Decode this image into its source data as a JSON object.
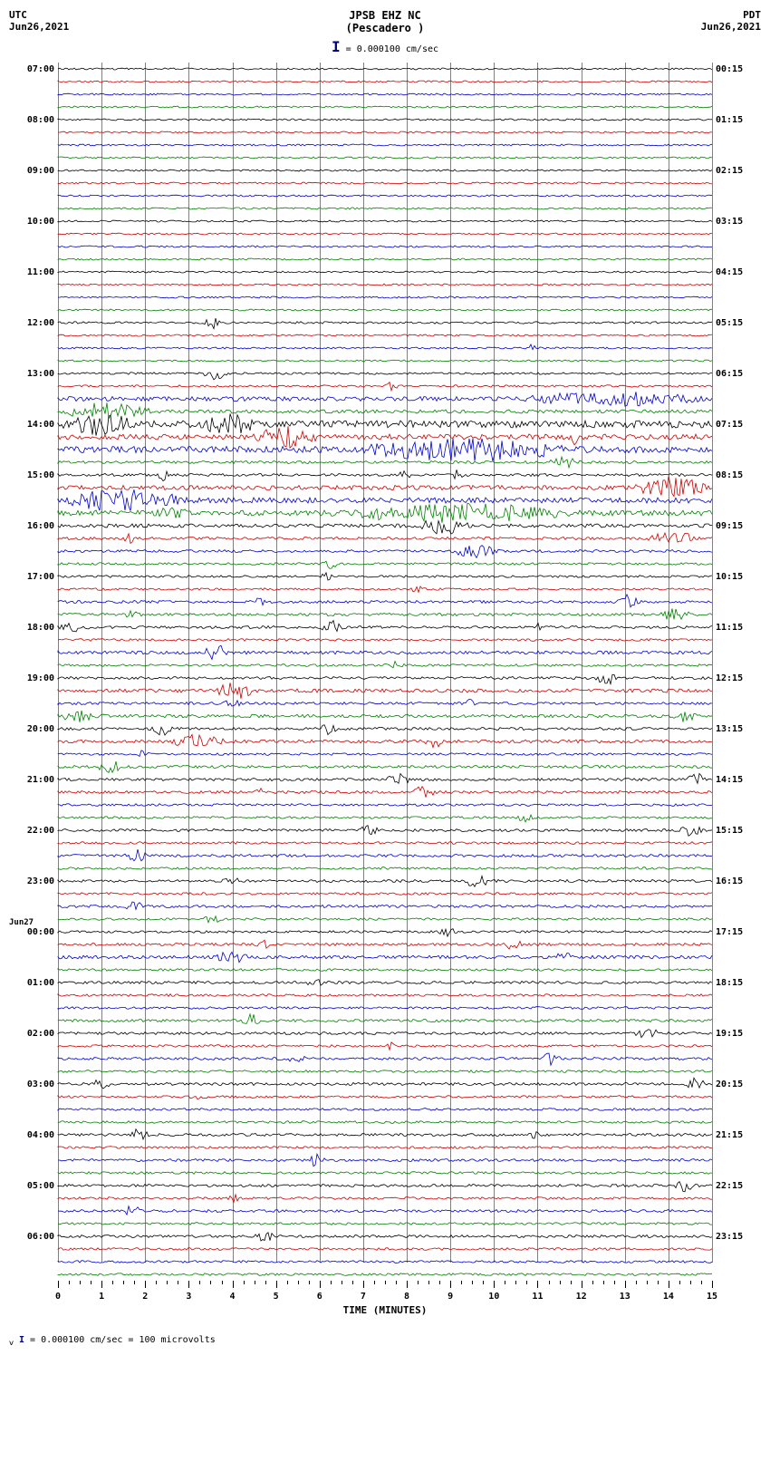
{
  "header": {
    "left_tz": "UTC",
    "left_date": "Jun26,2021",
    "station": "JPSB EHZ NC",
    "location": "(Pescadero )",
    "right_tz": "PDT",
    "right_date": "Jun26,2021",
    "scale_text": "= 0.000100 cm/sec"
  },
  "footer": {
    "text": "= 0.000100 cm/sec =    100 microvolts"
  },
  "x_axis": {
    "label": "TIME (MINUTES)",
    "min": 0,
    "max": 15,
    "major_ticks": [
      0,
      1,
      2,
      3,
      4,
      5,
      6,
      7,
      8,
      9,
      10,
      11,
      12,
      13,
      14,
      15
    ],
    "minor_per_major": 4
  },
  "colors": {
    "cycle": [
      "#000000",
      "#cc0000",
      "#0000cc",
      "#008000"
    ],
    "grid": "#808080",
    "background": "#ffffff"
  },
  "date_markers": [
    {
      "row_index": 68,
      "text": "Jun27"
    }
  ],
  "rows": [
    {
      "left": "07:00",
      "right": "00:15",
      "color": 0,
      "amp": 1.0,
      "events": []
    },
    {
      "left": "",
      "right": "",
      "color": 1,
      "amp": 1.0,
      "events": []
    },
    {
      "left": "",
      "right": "",
      "color": 2,
      "amp": 1.0,
      "events": []
    },
    {
      "left": "",
      "right": "",
      "color": 3,
      "amp": 1.0,
      "events": []
    },
    {
      "left": "08:00",
      "right": "01:15",
      "color": 0,
      "amp": 1.0,
      "events": []
    },
    {
      "left": "",
      "right": "",
      "color": 1,
      "amp": 1.0,
      "events": []
    },
    {
      "left": "",
      "right": "",
      "color": 2,
      "amp": 1.0,
      "events": []
    },
    {
      "left": "",
      "right": "",
      "color": 3,
      "amp": 1.0,
      "events": []
    },
    {
      "left": "09:00",
      "right": "02:15",
      "color": 0,
      "amp": 1.0,
      "events": []
    },
    {
      "left": "",
      "right": "",
      "color": 1,
      "amp": 1.0,
      "events": []
    },
    {
      "left": "",
      "right": "",
      "color": 2,
      "amp": 1.0,
      "events": []
    },
    {
      "left": "",
      "right": "",
      "color": 3,
      "amp": 1.0,
      "events": []
    },
    {
      "left": "10:00",
      "right": "03:15",
      "color": 0,
      "amp": 1.0,
      "events": []
    },
    {
      "left": "",
      "right": "",
      "color": 1,
      "amp": 1.0,
      "events": []
    },
    {
      "left": "",
      "right": "",
      "color": 2,
      "amp": 1.0,
      "events": []
    },
    {
      "left": "",
      "right": "",
      "color": 3,
      "amp": 1.0,
      "events": []
    },
    {
      "left": "11:00",
      "right": "04:15",
      "color": 0,
      "amp": 1.0,
      "events": []
    },
    {
      "left": "",
      "right": "",
      "color": 1,
      "amp": 1.0,
      "events": []
    },
    {
      "left": "",
      "right": "",
      "color": 2,
      "amp": 1.0,
      "events": []
    },
    {
      "left": "",
      "right": "",
      "color": 3,
      "amp": 1.0,
      "events": []
    },
    {
      "left": "12:00",
      "right": "05:15",
      "color": 0,
      "amp": 1.2,
      "events": [
        {
          "pos": 0.22,
          "w": 0.03,
          "h": 3
        }
      ]
    },
    {
      "left": "",
      "right": "",
      "color": 1,
      "amp": 1.0,
      "events": []
    },
    {
      "left": "",
      "right": "",
      "color": 2,
      "amp": 1.0,
      "events": [
        {
          "pos": 0.72,
          "w": 0.01,
          "h": 2
        }
      ]
    },
    {
      "left": "",
      "right": "",
      "color": 3,
      "amp": 1.0,
      "events": []
    },
    {
      "left": "13:00",
      "right": "06:15",
      "color": 0,
      "amp": 1.2,
      "events": [
        {
          "pos": 0.22,
          "w": 0.04,
          "h": 3
        }
      ]
    },
    {
      "left": "",
      "right": "",
      "color": 1,
      "amp": 1.2,
      "events": [
        {
          "pos": 0.5,
          "w": 0.02,
          "h": 2
        }
      ]
    },
    {
      "left": "",
      "right": "",
      "color": 2,
      "amp": 2.5,
      "events": [
        {
          "pos": 0.7,
          "w": 0.3,
          "h": 3
        }
      ]
    },
    {
      "left": "",
      "right": "",
      "color": 3,
      "amp": 2.0,
      "events": [
        {
          "pos": 0.0,
          "w": 0.15,
          "h": 4
        }
      ]
    },
    {
      "left": "14:00",
      "right": "07:15",
      "color": 0,
      "amp": 4.0,
      "events": [
        {
          "pos": 0.0,
          "w": 0.12,
          "h": 5
        },
        {
          "pos": 0.22,
          "w": 0.08,
          "h": 6
        }
      ]
    },
    {
      "left": "",
      "right": "",
      "color": 1,
      "amp": 3.0,
      "events": [
        {
          "pos": 0.3,
          "w": 0.1,
          "h": 5
        },
        {
          "pos": 0.78,
          "w": 0.02,
          "h": 3
        }
      ]
    },
    {
      "left": "",
      "right": "",
      "color": 2,
      "amp": 3.5,
      "events": [
        {
          "pos": 0.45,
          "w": 0.35,
          "h": 5
        }
      ]
    },
    {
      "left": "",
      "right": "",
      "color": 3,
      "amp": 1.5,
      "events": [
        {
          "pos": 0.75,
          "w": 0.05,
          "h": 3
        }
      ]
    },
    {
      "left": "15:00",
      "right": "08:15",
      "color": 0,
      "amp": 1.5,
      "events": [
        {
          "pos": 0.15,
          "w": 0.02,
          "h": 3
        },
        {
          "pos": 0.52,
          "w": 0.02,
          "h": 2
        },
        {
          "pos": 0.6,
          "w": 0.02,
          "h": 3
        }
      ]
    },
    {
      "left": "",
      "right": "",
      "color": 1,
      "amp": 2.5,
      "events": [
        {
          "pos": 0.88,
          "w": 0.12,
          "h": 5
        }
      ]
    },
    {
      "left": "",
      "right": "",
      "color": 2,
      "amp": 3.0,
      "events": [
        {
          "pos": 0.0,
          "w": 0.2,
          "h": 5
        }
      ]
    },
    {
      "left": "",
      "right": "",
      "color": 3,
      "amp": 3.0,
      "events": [
        {
          "pos": 0.15,
          "w": 0.05,
          "h": 3
        },
        {
          "pos": 0.4,
          "w": 0.4,
          "h": 4
        }
      ]
    },
    {
      "left": "16:00",
      "right": "09:15",
      "color": 0,
      "amp": 2.0,
      "events": [
        {
          "pos": 0.55,
          "w": 0.08,
          "h": 4
        }
      ]
    },
    {
      "left": "",
      "right": "",
      "color": 1,
      "amp": 1.5,
      "events": [
        {
          "pos": 0.1,
          "w": 0.02,
          "h": 2
        },
        {
          "pos": 0.9,
          "w": 0.08,
          "h": 4
        }
      ]
    },
    {
      "left": "",
      "right": "",
      "color": 2,
      "amp": 1.5,
      "events": [
        {
          "pos": 0.6,
          "w": 0.08,
          "h": 3
        }
      ]
    },
    {
      "left": "",
      "right": "",
      "color": 3,
      "amp": 1.3,
      "events": [
        {
          "pos": 0.4,
          "w": 0.03,
          "h": 2
        }
      ]
    },
    {
      "left": "17:00",
      "right": "10:15",
      "color": 0,
      "amp": 1.2,
      "events": [
        {
          "pos": 0.4,
          "w": 0.02,
          "h": 2
        }
      ]
    },
    {
      "left": "",
      "right": "",
      "color": 1,
      "amp": 1.2,
      "events": [
        {
          "pos": 0.54,
          "w": 0.02,
          "h": 2
        }
      ]
    },
    {
      "left": "",
      "right": "",
      "color": 2,
      "amp": 1.5,
      "events": [
        {
          "pos": 0.3,
          "w": 0.02,
          "h": 2
        },
        {
          "pos": 0.85,
          "w": 0.04,
          "h": 4
        }
      ]
    },
    {
      "left": "",
      "right": "",
      "color": 3,
      "amp": 1.5,
      "events": [
        {
          "pos": 0.1,
          "w": 0.03,
          "h": 3
        },
        {
          "pos": 0.92,
          "w": 0.05,
          "h": 3
        }
      ]
    },
    {
      "left": "18:00",
      "right": "11:15",
      "color": 0,
      "amp": 1.5,
      "events": [
        {
          "pos": 0.0,
          "w": 0.05,
          "h": 2
        },
        {
          "pos": 0.4,
          "w": 0.04,
          "h": 3
        },
        {
          "pos": 0.72,
          "w": 0.02,
          "h": 2
        }
      ]
    },
    {
      "left": "",
      "right": "",
      "color": 1,
      "amp": 1.3,
      "events": []
    },
    {
      "left": "",
      "right": "",
      "color": 2,
      "amp": 1.8,
      "events": [
        {
          "pos": 0.22,
          "w": 0.04,
          "h": 4
        }
      ]
    },
    {
      "left": "",
      "right": "",
      "color": 3,
      "amp": 1.3,
      "events": [
        {
          "pos": 0.5,
          "w": 0.03,
          "h": 2
        }
      ]
    },
    {
      "left": "19:00",
      "right": "12:15",
      "color": 0,
      "amp": 1.5,
      "events": [
        {
          "pos": 0.82,
          "w": 0.04,
          "h": 3
        }
      ]
    },
    {
      "left": "",
      "right": "",
      "color": 1,
      "amp": 2.0,
      "events": [
        {
          "pos": 0.24,
          "w": 0.06,
          "h": 4
        }
      ]
    },
    {
      "left": "",
      "right": "",
      "color": 2,
      "amp": 1.5,
      "events": [
        {
          "pos": 0.25,
          "w": 0.03,
          "h": 2
        },
        {
          "pos": 0.62,
          "w": 0.02,
          "h": 2
        }
      ]
    },
    {
      "left": "",
      "right": "",
      "color": 3,
      "amp": 1.8,
      "events": [
        {
          "pos": 0.0,
          "w": 0.06,
          "h": 3
        },
        {
          "pos": 0.94,
          "w": 0.04,
          "h": 4
        }
      ]
    },
    {
      "left": "20:00",
      "right": "13:15",
      "color": 0,
      "amp": 1.5,
      "events": [
        {
          "pos": 0.14,
          "w": 0.04,
          "h": 3
        },
        {
          "pos": 0.4,
          "w": 0.03,
          "h": 3
        }
      ]
    },
    {
      "left": "",
      "right": "",
      "color": 1,
      "amp": 1.8,
      "events": [
        {
          "pos": 0.16,
          "w": 0.1,
          "h": 3
        },
        {
          "pos": 0.56,
          "w": 0.03,
          "h": 3
        }
      ]
    },
    {
      "left": "",
      "right": "",
      "color": 2,
      "amp": 1.3,
      "events": [
        {
          "pos": 0.12,
          "w": 0.02,
          "h": 2
        }
      ]
    },
    {
      "left": "",
      "right": "",
      "color": 3,
      "amp": 1.5,
      "events": [
        {
          "pos": 0.06,
          "w": 0.04,
          "h": 3
        }
      ]
    },
    {
      "left": "21:00",
      "right": "14:15",
      "color": 0,
      "amp": 1.5,
      "events": [
        {
          "pos": 0.5,
          "w": 0.04,
          "h": 3
        },
        {
          "pos": 0.96,
          "w": 0.03,
          "h": 3
        }
      ]
    },
    {
      "left": "",
      "right": "",
      "color": 1,
      "amp": 1.5,
      "events": [
        {
          "pos": 0.3,
          "w": 0.03,
          "h": 2
        },
        {
          "pos": 0.54,
          "w": 0.04,
          "h": 3
        }
      ]
    },
    {
      "left": "",
      "right": "",
      "color": 2,
      "amp": 1.3,
      "events": []
    },
    {
      "left": "",
      "right": "",
      "color": 3,
      "amp": 1.3,
      "events": [
        {
          "pos": 0.7,
          "w": 0.03,
          "h": 2
        }
      ]
    },
    {
      "left": "22:00",
      "right": "15:15",
      "color": 0,
      "amp": 1.5,
      "events": [
        {
          "pos": 0.46,
          "w": 0.03,
          "h": 3
        },
        {
          "pos": 0.95,
          "w": 0.04,
          "h": 3
        }
      ]
    },
    {
      "left": "",
      "right": "",
      "color": 1,
      "amp": 1.3,
      "events": []
    },
    {
      "left": "",
      "right": "",
      "color": 2,
      "amp": 1.5,
      "events": [
        {
          "pos": 0.1,
          "w": 0.04,
          "h": 3
        }
      ]
    },
    {
      "left": "",
      "right": "",
      "color": 3,
      "amp": 1.3,
      "events": []
    },
    {
      "left": "23:00",
      "right": "16:15",
      "color": 0,
      "amp": 1.5,
      "events": [
        {
          "pos": 0.25,
          "w": 0.03,
          "h": 2
        },
        {
          "pos": 0.62,
          "w": 0.04,
          "h": 3
        }
      ]
    },
    {
      "left": "",
      "right": "",
      "color": 1,
      "amp": 1.3,
      "events": []
    },
    {
      "left": "",
      "right": "",
      "color": 2,
      "amp": 1.5,
      "events": [
        {
          "pos": 0.1,
          "w": 0.03,
          "h": 3
        }
      ]
    },
    {
      "left": "",
      "right": "",
      "color": 3,
      "amp": 1.3,
      "events": [
        {
          "pos": 0.22,
          "w": 0.03,
          "h": 2
        }
      ]
    },
    {
      "left": "00:00",
      "right": "17:15",
      "color": 0,
      "amp": 1.3,
      "events": [
        {
          "pos": 0.58,
          "w": 0.03,
          "h": 2
        }
      ]
    },
    {
      "left": "",
      "right": "",
      "color": 1,
      "amp": 1.5,
      "events": [
        {
          "pos": 0.3,
          "w": 0.03,
          "h": 2
        },
        {
          "pos": 0.68,
          "w": 0.03,
          "h": 3
        }
      ]
    },
    {
      "left": "",
      "right": "",
      "color": 2,
      "amp": 1.8,
      "events": [
        {
          "pos": 0.24,
          "w": 0.05,
          "h": 4
        },
        {
          "pos": 0.76,
          "w": 0.03,
          "h": 3
        }
      ]
    },
    {
      "left": "",
      "right": "",
      "color": 3,
      "amp": 1.3,
      "events": []
    },
    {
      "left": "01:00",
      "right": "18:15",
      "color": 0,
      "amp": 1.5,
      "events": [
        {
          "pos": 0.38,
          "w": 0.03,
          "h": 3
        }
      ]
    },
    {
      "left": "",
      "right": "",
      "color": 1,
      "amp": 1.3,
      "events": []
    },
    {
      "left": "",
      "right": "",
      "color": 2,
      "amp": 1.3,
      "events": []
    },
    {
      "left": "",
      "right": "",
      "color": 3,
      "amp": 1.5,
      "events": [
        {
          "pos": 0.28,
          "w": 0.03,
          "h": 3
        }
      ]
    },
    {
      "left": "02:00",
      "right": "19:15",
      "color": 0,
      "amp": 1.5,
      "events": [
        {
          "pos": 0.88,
          "w": 0.04,
          "h": 3
        }
      ]
    },
    {
      "left": "",
      "right": "",
      "color": 1,
      "amp": 1.3,
      "events": [
        {
          "pos": 0.5,
          "w": 0.02,
          "h": 2
        }
      ]
    },
    {
      "left": "",
      "right": "",
      "color": 2,
      "amp": 1.5,
      "events": [
        {
          "pos": 0.35,
          "w": 0.03,
          "h": 2
        },
        {
          "pos": 0.74,
          "w": 0.03,
          "h": 3
        }
      ]
    },
    {
      "left": "",
      "right": "",
      "color": 3,
      "amp": 1.3,
      "events": []
    },
    {
      "left": "03:00",
      "right": "20:15",
      "color": 0,
      "amp": 1.5,
      "events": [
        {
          "pos": 0.05,
          "w": 0.03,
          "h": 3
        },
        {
          "pos": 0.96,
          "w": 0.03,
          "h": 3
        }
      ]
    },
    {
      "left": "",
      "right": "",
      "color": 1,
      "amp": 1.3,
      "events": [
        {
          "pos": 0.2,
          "w": 0.03,
          "h": 2
        }
      ]
    },
    {
      "left": "",
      "right": "",
      "color": 2,
      "amp": 1.3,
      "events": []
    },
    {
      "left": "",
      "right": "",
      "color": 3,
      "amp": 1.3,
      "events": []
    },
    {
      "left": "04:00",
      "right": "21:15",
      "color": 0,
      "amp": 1.5,
      "events": [
        {
          "pos": 0.1,
          "w": 0.04,
          "h": 3
        },
        {
          "pos": 0.72,
          "w": 0.02,
          "h": 2
        }
      ]
    },
    {
      "left": "",
      "right": "",
      "color": 1,
      "amp": 1.3,
      "events": []
    },
    {
      "left": "",
      "right": "",
      "color": 2,
      "amp": 1.5,
      "events": [
        {
          "pos": 0.38,
          "w": 0.03,
          "h": 3
        }
      ]
    },
    {
      "left": "",
      "right": "",
      "color": 3,
      "amp": 1.3,
      "events": []
    },
    {
      "left": "05:00",
      "right": "22:15",
      "color": 0,
      "amp": 1.5,
      "events": [
        {
          "pos": 0.94,
          "w": 0.04,
          "h": 3
        }
      ]
    },
    {
      "left": "",
      "right": "",
      "color": 1,
      "amp": 1.3,
      "events": [
        {
          "pos": 0.26,
          "w": 0.02,
          "h": 2
        }
      ]
    },
    {
      "left": "",
      "right": "",
      "color": 2,
      "amp": 1.5,
      "events": [
        {
          "pos": 0.1,
          "w": 0.03,
          "h": 3
        }
      ]
    },
    {
      "left": "",
      "right": "",
      "color": 3,
      "amp": 1.3,
      "events": []
    },
    {
      "left": "06:00",
      "right": "23:15",
      "color": 0,
      "amp": 1.5,
      "events": [
        {
          "pos": 0.3,
          "w": 0.03,
          "h": 3
        }
      ]
    },
    {
      "left": "",
      "right": "",
      "color": 1,
      "amp": 1.3,
      "events": []
    },
    {
      "left": "",
      "right": "",
      "color": 2,
      "amp": 1.3,
      "events": []
    },
    {
      "left": "",
      "right": "",
      "color": 3,
      "amp": 1.3,
      "events": []
    }
  ]
}
